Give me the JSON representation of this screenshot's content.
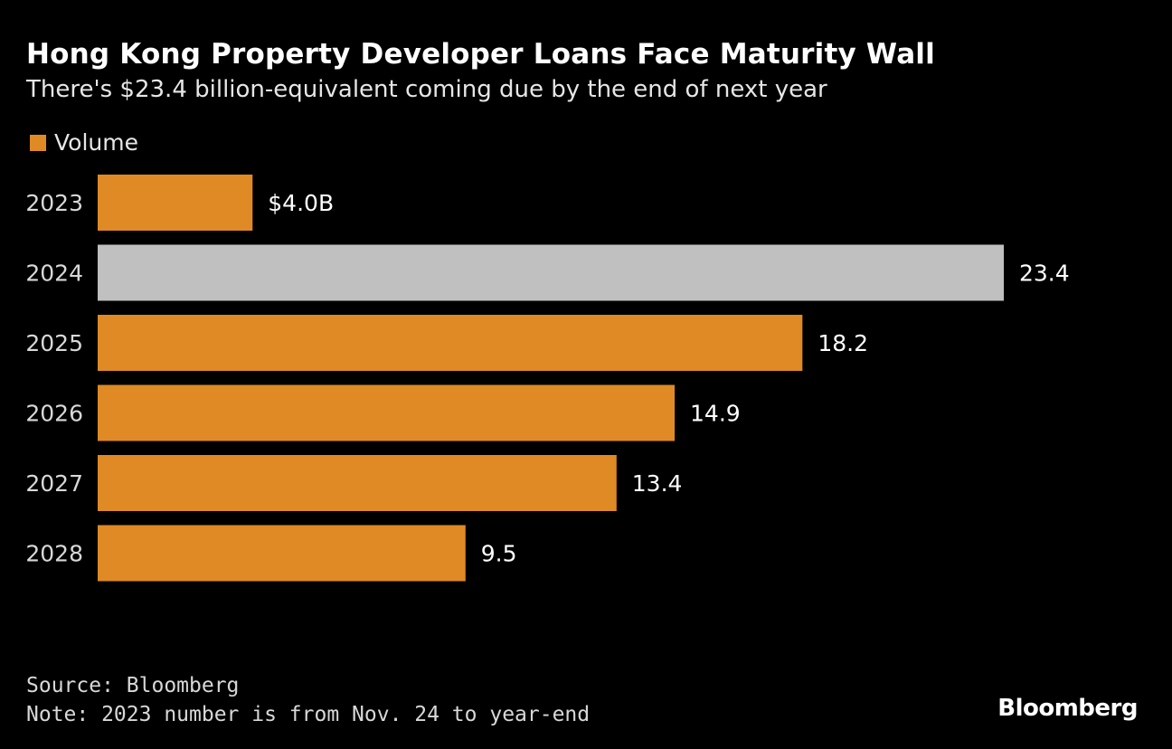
{
  "chart_data": {
    "type": "bar",
    "orientation": "horizontal",
    "title": "Hong Kong Property Developer Loans Face Maturity Wall",
    "subtitle": "There's $23.4 billion-equivalent coming due by the end of next year",
    "categories": [
      "2023",
      "2024",
      "2025",
      "2026",
      "2027",
      "2028"
    ],
    "series": [
      {
        "name": "Volume",
        "values": [
          4.0,
          23.4,
          18.2,
          14.9,
          13.4,
          9.5
        ]
      }
    ],
    "data_labels": [
      "$4.0B",
      "23.4",
      "18.2",
      "14.9",
      "13.4",
      "9.5"
    ],
    "highlight_category": "2024",
    "xlim": [
      0,
      23.4
    ],
    "grid": false,
    "legend_position": "top-left",
    "colors": {
      "bar": "#df8a24",
      "highlight": "#c0c0c0",
      "background": "#000000"
    }
  },
  "footer": {
    "source": "Source: Bloomberg",
    "note": "Note: 2023 number is from Nov. 24 to year-end"
  },
  "brand": "Bloomberg"
}
